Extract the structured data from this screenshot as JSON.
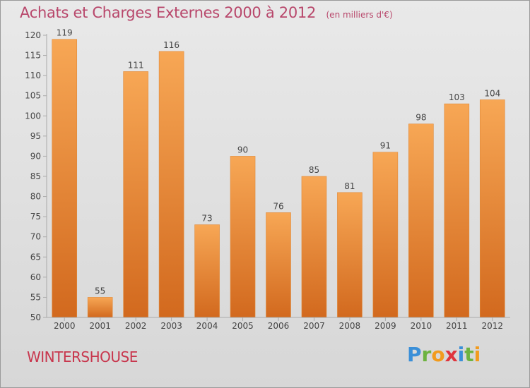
{
  "header": {
    "title": "Achats et Charges Externes 2000 à 2012",
    "subtitle": "(en milliers d'€)"
  },
  "footer": {
    "commune": "WINTERSHOUSE",
    "brand_letters": [
      {
        "char": "P",
        "color": "#3a8fd8"
      },
      {
        "char": "r",
        "color": "#6db33f"
      },
      {
        "char": "o",
        "color": "#f29b1d"
      },
      {
        "char": "x",
        "color": "#e0343c"
      },
      {
        "char": "i",
        "color": "#3a8fd8"
      },
      {
        "char": "t",
        "color": "#6db33f"
      },
      {
        "char": "i",
        "color": "#f29b1d"
      }
    ]
  },
  "chart_data": {
    "type": "bar",
    "categories": [
      "2000",
      "2001",
      "2002",
      "2003",
      "2004",
      "2005",
      "2006",
      "2007",
      "2008",
      "2009",
      "2010",
      "2011",
      "2012"
    ],
    "values": [
      119,
      55,
      111,
      116,
      73,
      90,
      76,
      85,
      81,
      91,
      98,
      103,
      104
    ],
    "value_labels": [
      "119",
      "55",
      "111",
      "116",
      "73",
      "90",
      "76",
      "85",
      "81",
      "91",
      "98",
      "103",
      "104"
    ],
    "ylim": [
      50,
      120
    ],
    "yticks": [
      50,
      55,
      60,
      65,
      70,
      75,
      80,
      85,
      90,
      95,
      100,
      105,
      110,
      115,
      120
    ],
    "grid": false,
    "colors": {
      "bar_light": "#f7a755",
      "bar_dark": "#d2691e",
      "bar_edge": "#e08a3a",
      "axis": "#aaaaaa",
      "text": "#444444"
    }
  }
}
